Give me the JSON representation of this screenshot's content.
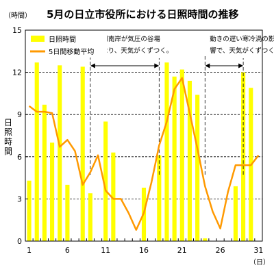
{
  "chart_data": {
    "type": "bar+line",
    "title": "5月の日立市役所における日照時間の推移",
    "y_unit_label": "（時間）",
    "ylabel": "日照時間",
    "x_unit_label": "（日）",
    "ylim": [
      0,
      15
    ],
    "y_ticks": [
      0,
      3,
      6,
      9,
      12,
      15
    ],
    "x_tick_labels": [
      1,
      6,
      11,
      16,
      21,
      26,
      31
    ],
    "categories": [
      1,
      2,
      3,
      4,
      5,
      6,
      7,
      8,
      9,
      10,
      11,
      12,
      13,
      14,
      15,
      16,
      17,
      18,
      19,
      20,
      21,
      22,
      23,
      24,
      25,
      26,
      27,
      28,
      29,
      30,
      31
    ],
    "grid": "horizontal dashed",
    "legend_position": "top-left",
    "series": [
      {
        "name": "日照時間",
        "type": "bar",
        "color": "#ffff00",
        "values": [
          4.3,
          12.7,
          9.7,
          7.0,
          12.5,
          4.0,
          0,
          12.4,
          3.4,
          0,
          8.5,
          6.3,
          0,
          0,
          0,
          3.8,
          0,
          6.1,
          12.7,
          11.7,
          12.2,
          11.4,
          10.4,
          0.2,
          0,
          0,
          0,
          3.9,
          12.0,
          10.9,
          0
        ]
      },
      {
        "name": "5日間移動平均",
        "type": "line",
        "color": "#ff9900",
        "values": [
          9.6,
          9.2,
          9.2,
          9.1,
          6.7,
          7.2,
          6.4,
          4.0,
          4.9,
          6.1,
          3.6,
          3.0,
          3.0,
          2.0,
          0.8,
          2.0,
          4.2,
          6.8,
          8.5,
          10.8,
          11.6,
          9.1,
          6.6,
          3.9,
          2.1,
          0.9,
          3.5,
          5.4,
          5.4,
          5.4,
          6.1
        ]
      }
    ],
    "annotations": [
      {
        "lines": [
          "本州南岸が気圧の谷場",
          "となり、天気がくずつく。"
        ],
        "span": [
          9,
          18
        ]
      },
      {
        "lines": [
          "動きの遅い寒冷渦の影",
          "響で、天気がくずつく。"
        ],
        "span": [
          24,
          29
        ]
      }
    ]
  }
}
